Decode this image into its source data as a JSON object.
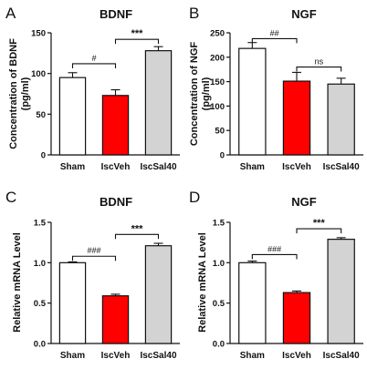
{
  "figure": {
    "background": "#ffffff"
  },
  "chart_data": [
    {
      "panel": "A",
      "type": "bar",
      "title": "BDNF",
      "ylabel": "Concentration of BDNF\n(pg/ml)",
      "categories": [
        "Sham",
        "IscVeh",
        "IscSal40"
      ],
      "values": [
        95,
        73,
        128
      ],
      "errors": [
        6,
        7,
        5
      ],
      "colors": [
        "#ffffff",
        "#ff0000",
        "#d3d3d3"
      ],
      "ylim": [
        0,
        150
      ],
      "yticks": [
        0,
        50,
        100,
        150
      ],
      "grid": false,
      "significance": [
        {
          "from": 0,
          "to": 1,
          "label": "#",
          "y": 112
        },
        {
          "from": 1,
          "to": 2,
          "label": "***",
          "y": 142
        }
      ]
    },
    {
      "panel": "B",
      "type": "bar",
      "title": "NGF",
      "ylabel": "Concentration of NGF\n(pg/ml)",
      "categories": [
        "Sham",
        "IscVeh",
        "IscSal40"
      ],
      "values": [
        218,
        151,
        145
      ],
      "errors": [
        12,
        18,
        12
      ],
      "colors": [
        "#ffffff",
        "#ff0000",
        "#d3d3d3"
      ],
      "ylim": [
        0,
        250
      ],
      "yticks": [
        0,
        50,
        100,
        150,
        200,
        250
      ],
      "grid": false,
      "significance": [
        {
          "from": 0,
          "to": 1,
          "label": "##",
          "y": 238
        },
        {
          "from": 1,
          "to": 2,
          "label": "ns",
          "y": 180
        }
      ]
    },
    {
      "panel": "C",
      "type": "bar",
      "title": "BDNF",
      "ylabel": "Relative mRNA Level",
      "categories": [
        "Sham",
        "IscVeh",
        "IscSal40"
      ],
      "values": [
        1.0,
        0.59,
        1.21
      ],
      "errors": [
        0.01,
        0.02,
        0.03
      ],
      "colors": [
        "#ffffff",
        "#ff0000",
        "#d3d3d3"
      ],
      "ylim": [
        0,
        1.5
      ],
      "yticks": [
        "0.0",
        "0.5",
        "1.0",
        "1.5"
      ],
      "grid": false,
      "significance": [
        {
          "from": 0,
          "to": 1,
          "label": "###",
          "y": 1.08
        },
        {
          "from": 1,
          "to": 2,
          "label": "***",
          "y": 1.35
        }
      ]
    },
    {
      "panel": "D",
      "type": "bar",
      "title": "NGF",
      "ylabel": "Relative mRNA Level",
      "categories": [
        "Sham",
        "IscVeh",
        "IscSal40"
      ],
      "values": [
        1.0,
        0.63,
        1.29
      ],
      "errors": [
        0.02,
        0.02,
        0.02
      ],
      "colors": [
        "#ffffff",
        "#ff0000",
        "#d3d3d3"
      ],
      "ylim": [
        0,
        1.5
      ],
      "yticks": [
        "0.0",
        "0.5",
        "1.0",
        "1.5"
      ],
      "grid": false,
      "significance": [
        {
          "from": 0,
          "to": 1,
          "label": "###",
          "y": 1.1
        },
        {
          "from": 1,
          "to": 2,
          "label": "***",
          "y": 1.42
        }
      ]
    }
  ]
}
